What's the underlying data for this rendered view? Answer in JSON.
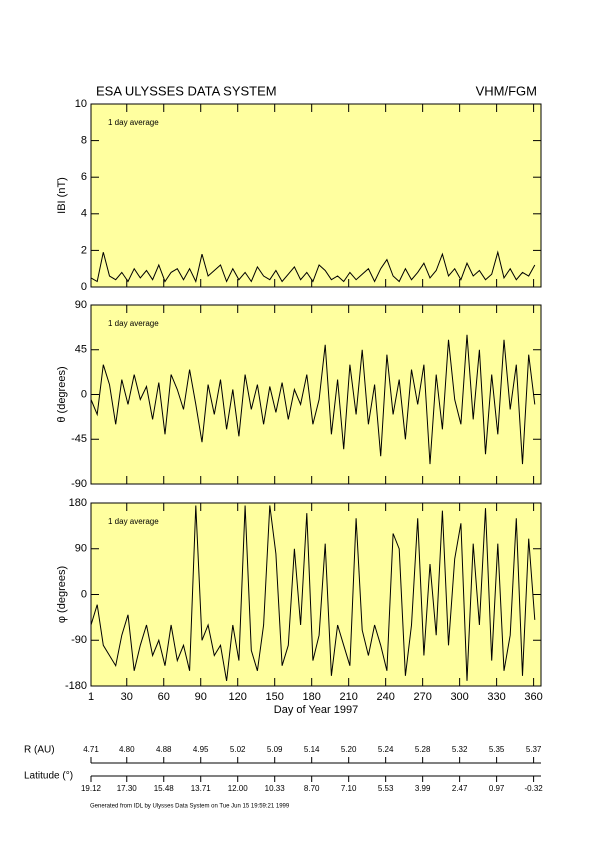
{
  "chart_data": [
    {
      "type": "line",
      "title": "ESA ULYSSES DATA SYSTEM",
      "subtitle": "VHM/FGM",
      "ylabel": "IBI (nT)",
      "annotation": "1 day average",
      "color": "#000000",
      "background": "#ffff9f",
      "x": [
        1,
        6,
        11,
        16,
        21,
        26,
        31,
        36,
        41,
        46,
        51,
        56,
        61,
        66,
        71,
        76,
        81,
        86,
        91,
        96,
        101,
        106,
        111,
        116,
        121,
        126,
        131,
        136,
        141,
        146,
        151,
        156,
        161,
        166,
        171,
        176,
        181,
        186,
        191,
        196,
        201,
        206,
        211,
        216,
        221,
        226,
        231,
        236,
        241,
        246,
        251,
        256,
        261,
        266,
        271,
        276,
        281,
        286,
        291,
        296,
        301,
        306,
        311,
        316,
        321,
        326,
        331,
        336,
        341,
        346,
        351,
        356,
        361
      ],
      "values": [
        0.5,
        0.3,
        1.9,
        0.6,
        0.4,
        0.8,
        0.3,
        1.0,
        0.5,
        0.9,
        0.4,
        1.2,
        0.3,
        0.8,
        1.0,
        0.4,
        1.0,
        0.3,
        1.8,
        0.6,
        0.9,
        1.2,
        0.3,
        1.0,
        0.4,
        0.8,
        0.3,
        1.1,
        0.6,
        0.4,
        0.9,
        0.3,
        0.7,
        1.1,
        0.4,
        0.8,
        0.3,
        1.2,
        0.9,
        0.4,
        0.6,
        0.3,
        0.8,
        0.4,
        0.7,
        1.0,
        0.3,
        1.0,
        1.5,
        0.6,
        0.3,
        1.0,
        0.4,
        0.8,
        1.3,
        0.5,
        0.9,
        1.8,
        0.6,
        1.0,
        0.4,
        1.3,
        0.6,
        0.9,
        0.4,
        0.7,
        1.9,
        0.5,
        1.0,
        0.4,
        0.8,
        0.6,
        1.2
      ],
      "xlim": [
        1,
        366
      ],
      "ylim": [
        0,
        10
      ],
      "yticks": [
        0,
        2,
        4,
        6,
        8,
        10
      ]
    },
    {
      "type": "line",
      "ylabel": "θ (degrees)",
      "annotation": "1 day average",
      "color": "#000000",
      "background": "#ffff9f",
      "x": [
        1,
        6,
        11,
        16,
        21,
        26,
        31,
        36,
        41,
        46,
        51,
        56,
        61,
        66,
        71,
        76,
        81,
        86,
        91,
        96,
        101,
        106,
        111,
        116,
        121,
        126,
        131,
        136,
        141,
        146,
        151,
        156,
        161,
        166,
        171,
        176,
        181,
        186,
        191,
        196,
        201,
        206,
        211,
        216,
        221,
        226,
        231,
        236,
        241,
        246,
        251,
        256,
        261,
        266,
        271,
        276,
        281,
        286,
        291,
        296,
        301,
        306,
        311,
        316,
        321,
        326,
        331,
        336,
        341,
        346,
        351,
        356,
        361
      ],
      "values": [
        -5,
        -20,
        30,
        10,
        -30,
        15,
        -10,
        20,
        -5,
        8,
        -25,
        12,
        -40,
        20,
        5,
        -15,
        25,
        -10,
        -48,
        10,
        -20,
        15,
        -35,
        5,
        -42,
        20,
        -15,
        10,
        -30,
        8,
        -18,
        12,
        -25,
        5,
        -10,
        20,
        -30,
        -5,
        50,
        -40,
        15,
        -55,
        30,
        -20,
        45,
        -30,
        10,
        -62,
        40,
        -20,
        15,
        -45,
        25,
        -10,
        30,
        -70,
        20,
        -35,
        55,
        -5,
        -30,
        60,
        -25,
        45,
        -60,
        20,
        -40,
        55,
        -15,
        30,
        -70,
        40,
        -10
      ],
      "xlim": [
        1,
        366
      ],
      "ylim": [
        -90,
        90
      ],
      "yticks": [
        -90,
        -45,
        0,
        45,
        90
      ]
    },
    {
      "type": "line",
      "ylabel": "φ (degrees)",
      "annotation": "1 day average",
      "color": "#000000",
      "background": "#ffff9f",
      "xlabel": "Day of Year 1997",
      "x": [
        1,
        6,
        11,
        16,
        21,
        26,
        31,
        36,
        41,
        46,
        51,
        56,
        61,
        66,
        71,
        76,
        81,
        86,
        91,
        96,
        101,
        106,
        111,
        116,
        121,
        126,
        131,
        136,
        141,
        146,
        151,
        156,
        161,
        166,
        171,
        176,
        181,
        186,
        191,
        196,
        201,
        206,
        211,
        216,
        221,
        226,
        231,
        236,
        241,
        246,
        251,
        256,
        261,
        266,
        271,
        276,
        281,
        286,
        291,
        296,
        301,
        306,
        311,
        316,
        321,
        326,
        331,
        336,
        341,
        346,
        351,
        356,
        361
      ],
      "values": [
        -60,
        -20,
        -100,
        -120,
        -140,
        -80,
        -40,
        -150,
        -100,
        -60,
        -120,
        -90,
        -140,
        -60,
        -130,
        -100,
        -150,
        175,
        -90,
        -60,
        -120,
        -100,
        -170,
        -60,
        -130,
        175,
        -110,
        -150,
        -60,
        175,
        80,
        -140,
        -100,
        90,
        -60,
        160,
        -130,
        -80,
        100,
        -160,
        -60,
        -100,
        -140,
        150,
        -70,
        -120,
        -60,
        -100,
        -150,
        120,
        90,
        -160,
        -60,
        150,
        -120,
        60,
        -80,
        165,
        -100,
        70,
        140,
        -170,
        100,
        -60,
        170,
        -130,
        100,
        -150,
        -80,
        150,
        -160,
        110,
        -50
      ],
      "xlim": [
        1,
        366
      ],
      "ylim": [
        -180,
        180
      ],
      "yticks": [
        -180,
        -90,
        0,
        90,
        180
      ],
      "xticks": [
        1,
        30,
        60,
        90,
        120,
        150,
        180,
        210,
        240,
        270,
        300,
        330,
        360
      ]
    }
  ],
  "ephemeris": {
    "r_label": "R (AU)",
    "r": [
      "4.71",
      "4.80",
      "4.88",
      "4.95",
      "5.02",
      "5.09",
      "5.14",
      "5.20",
      "5.24",
      "5.28",
      "5.32",
      "5.35",
      "5.37"
    ],
    "lat_label": "Latitude (°)",
    "lat": [
      "19.12",
      "17.30",
      "15.48",
      "13.71",
      "12.00",
      "10.33",
      "8.70",
      "7.10",
      "5.53",
      "3.99",
      "2.47",
      "0.97",
      "-0.32"
    ]
  },
  "footer": "Generated from IDL by Ulysses Data System on Tue Jun 15 19:59:21 1999"
}
